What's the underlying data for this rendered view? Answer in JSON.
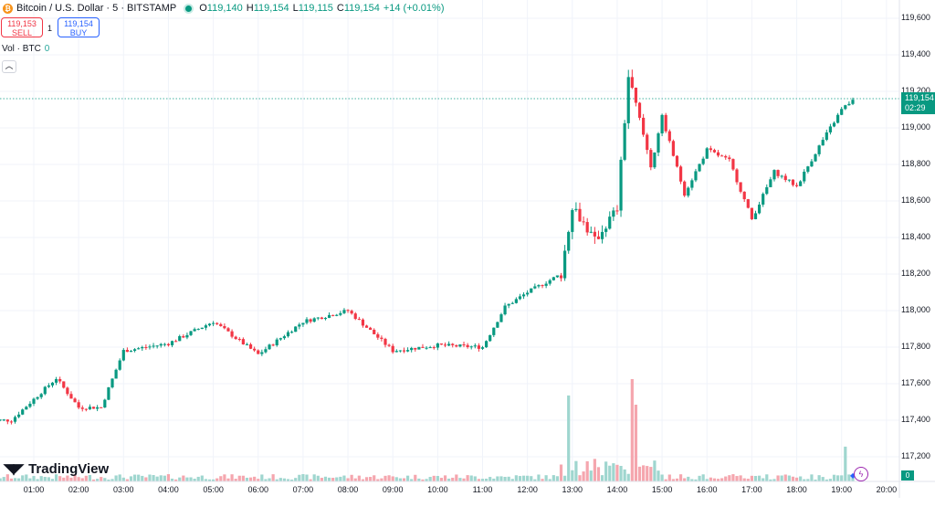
{
  "header": {
    "symbol": "Bitcoin / U.S. Dollar · 5 · BITSTAMP",
    "o_label": "O",
    "o": "119,140",
    "h_label": "H",
    "h": "119,154",
    "l_label": "L",
    "l": "119,115",
    "c_label": "C",
    "c": "119,154",
    "change": "+14 (+0.01%)"
  },
  "trade": {
    "sell_price": "119,153",
    "sell_label": "SELL",
    "spread": "1",
    "buy_price": "119,154",
    "buy_label": "BUY"
  },
  "volume_legend": {
    "label": "Vol · BTC",
    "value": "0"
  },
  "logo": "TradingView",
  "price_tag": {
    "price": "119,154",
    "countdown": "02:29"
  },
  "volume_tag": "0",
  "colors": {
    "up": "#089981",
    "down": "#f23645",
    "vol_up": "#9fd6cf",
    "vol_down": "#f5a6ae"
  },
  "chart_data": {
    "type": "candlestick",
    "interval_minutes": 5,
    "y_ticks": [
      "119,600",
      "119,400",
      "119,200",
      "119,000",
      "118,800",
      "118,600",
      "118,400",
      "118,200",
      "118,000",
      "117,800",
      "117,600",
      "117,400",
      "117,200"
    ],
    "x_ticks": [
      "01:00",
      "02:00",
      "03:00",
      "04:00",
      "05:00",
      "06:00",
      "07:00",
      "08:00",
      "09:00",
      "10:00",
      "11:00",
      "12:00",
      "13:00",
      "14:00",
      "15:00",
      "16:00",
      "17:00",
      "18:00",
      "19:00",
      "20:00"
    ],
    "ylim": [
      117150,
      119650
    ],
    "last_price": 119154,
    "key_closes": [
      [
        "00:30",
        117400
      ],
      [
        "01:30",
        117630
      ],
      [
        "02:00",
        117470
      ],
      [
        "02:30",
        117470
      ],
      [
        "03:00",
        117780
      ],
      [
        "04:00",
        117820
      ],
      [
        "05:00",
        117940
      ],
      [
        "06:00",
        117760
      ],
      [
        "07:00",
        117940
      ],
      [
        "08:00",
        118000
      ],
      [
        "09:00",
        117780
      ],
      [
        "10:00",
        117810
      ],
      [
        "11:00",
        117800
      ],
      [
        "11:30",
        118020
      ],
      [
        "12:00",
        118100
      ],
      [
        "12:45",
        118200
      ],
      [
        "13:00",
        118580
      ],
      [
        "13:30",
        118380
      ],
      [
        "14:00",
        118560
      ],
      [
        "14:15",
        119280
      ],
      [
        "14:45",
        118800
      ],
      [
        "15:00",
        119060
      ],
      [
        "15:30",
        118640
      ],
      [
        "16:00",
        118880
      ],
      [
        "16:30",
        118820
      ],
      [
        "17:00",
        118500
      ],
      [
        "17:30",
        118760
      ],
      [
        "18:00",
        118680
      ],
      [
        "18:30",
        118900
      ],
      [
        "19:00",
        119100
      ],
      [
        "19:15",
        119154
      ]
    ],
    "volume_spikes": [
      [
        "12:55",
        0.84
      ],
      [
        "14:20",
        1.0
      ],
      [
        "14:25",
        0.75
      ],
      [
        "19:05",
        0.34
      ]
    ]
  }
}
